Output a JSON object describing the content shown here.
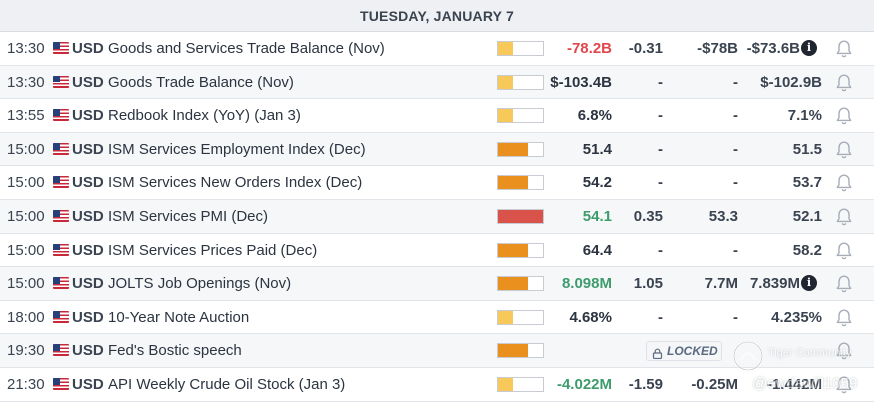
{
  "header": {
    "title": "TUESDAY, JANUARY 7"
  },
  "colors": {
    "negative": "#e0474c",
    "positive": "#3d9b6c",
    "neutral": "#2b3440",
    "impact_low": "#f6c95a",
    "impact_medium": "#e9901f",
    "impact_high": "#d9534a"
  },
  "rows": [
    {
      "time": "13:30",
      "currency": "USD",
      "event": "Goods and Services Trade Balance (Nov)",
      "impact": "low",
      "impact_level": 0.33,
      "actual": "-78.2B",
      "actual_tone": "negative",
      "deviation": "-0.31",
      "consensus": "-$78B",
      "previous": "-$73.6B",
      "info": true,
      "info_icon": "info-icon",
      "bell_icon": "bell-icon",
      "locked": false
    },
    {
      "time": "13:30",
      "currency": "USD",
      "event": "Goods Trade Balance (Nov)",
      "impact": "low",
      "impact_level": 0.33,
      "actual": "$-103.4B",
      "actual_tone": "neutral",
      "deviation": "-",
      "consensus": "-",
      "previous": "$-102.9B",
      "info": false,
      "bell_icon": "bell-icon",
      "locked": false
    },
    {
      "time": "13:55",
      "currency": "USD",
      "event": "Redbook Index (YoY) (Jan 3)",
      "impact": "low",
      "impact_level": 0.33,
      "actual": "6.8%",
      "actual_tone": "neutral",
      "deviation": "-",
      "consensus": "-",
      "previous": "7.1%",
      "info": false,
      "bell_icon": "bell-icon",
      "locked": false
    },
    {
      "time": "15:00",
      "currency": "USD",
      "event": "ISM Services Employment Index (Dec)",
      "impact": "medium",
      "impact_level": 0.66,
      "actual": "51.4",
      "actual_tone": "neutral",
      "deviation": "-",
      "consensus": "-",
      "previous": "51.5",
      "info": false,
      "bell_icon": "bell-icon",
      "locked": false
    },
    {
      "time": "15:00",
      "currency": "USD",
      "event": "ISM Services New Orders Index (Dec)",
      "impact": "medium",
      "impact_level": 0.66,
      "actual": "54.2",
      "actual_tone": "neutral",
      "deviation": "-",
      "consensus": "-",
      "previous": "53.7",
      "info": false,
      "bell_icon": "bell-icon",
      "locked": false
    },
    {
      "time": "15:00",
      "currency": "USD",
      "event": "ISM Services PMI (Dec)",
      "impact": "high",
      "impact_level": 1.0,
      "actual": "54.1",
      "actual_tone": "positive",
      "deviation": "0.35",
      "consensus": "53.3",
      "previous": "52.1",
      "info": false,
      "bell_icon": "bell-icon",
      "locked": false
    },
    {
      "time": "15:00",
      "currency": "USD",
      "event": "ISM Services Prices Paid (Dec)",
      "impact": "medium",
      "impact_level": 0.66,
      "actual": "64.4",
      "actual_tone": "neutral",
      "deviation": "-",
      "consensus": "-",
      "previous": "58.2",
      "info": false,
      "bell_icon": "bell-icon",
      "locked": false
    },
    {
      "time": "15:00",
      "currency": "USD",
      "event": "JOLTS Job Openings (Nov)",
      "impact": "medium",
      "impact_level": 0.66,
      "actual": "8.098M",
      "actual_tone": "positive",
      "deviation": "1.05",
      "consensus": "7.7M",
      "previous": "7.839M",
      "info": true,
      "info_icon": "info-icon",
      "bell_icon": "bell-icon",
      "locked": false
    },
    {
      "time": "18:00",
      "currency": "USD",
      "event": "10-Year Note Auction",
      "impact": "low",
      "impact_level": 0.33,
      "actual": "4.68%",
      "actual_tone": "neutral",
      "deviation": "-",
      "consensus": "-",
      "previous": "4.235%",
      "info": false,
      "bell_icon": "bell-icon",
      "locked": false
    },
    {
      "time": "19:30",
      "currency": "USD",
      "event": "Fed's Bostic speech",
      "impact": "medium",
      "impact_level": 0.66,
      "actual": "",
      "actual_tone": "neutral",
      "deviation": "",
      "consensus": "",
      "previous": "",
      "info": false,
      "bell_icon": "bell-icon",
      "locked": true,
      "locked_label": "LOCKED",
      "lock_icon": "lock-icon"
    },
    {
      "time": "21:30",
      "currency": "USD",
      "event": "API Weekly Crude Oil Stock (Jan 3)",
      "impact": "low",
      "impact_level": 0.33,
      "actual": "-4.022M",
      "actual_tone": "positive",
      "deviation": "-1.59",
      "consensus": "-0.25M",
      "previous": "-1.442M",
      "info": false,
      "bell_icon": "bell-icon",
      "locked": false
    }
  ],
  "watermark": {
    "brand": "Tiger Community",
    "user": "@ewdawill1059",
    "logo_icon": "tiger-logo-icon"
  }
}
